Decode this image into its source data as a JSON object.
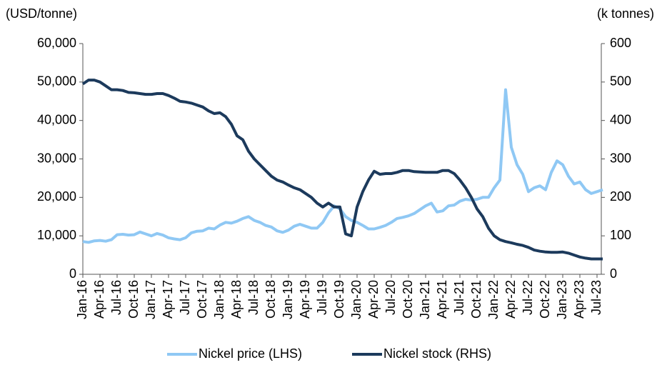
{
  "chart_data": {
    "type": "line",
    "y_label": "(USD/tonne)",
    "y2_label": "(k tonnes)",
    "categories": [
      "Jan-16",
      null,
      null,
      "Apr-16",
      null,
      null,
      "Jul-16",
      null,
      null,
      "Oct-16",
      null,
      null,
      "Jan-17",
      null,
      null,
      "Apr-17",
      null,
      null,
      "Jul-17",
      null,
      null,
      "Oct-17",
      null,
      null,
      "Jan-18",
      null,
      null,
      "Apr-18",
      null,
      null,
      "Jul-18",
      null,
      null,
      "Oct-18",
      null,
      null,
      "Jan-19",
      null,
      null,
      "Apr-19",
      null,
      null,
      "Jul-19",
      null,
      null,
      "Oct-19",
      null,
      null,
      "Jan-20",
      null,
      null,
      "Apr-20",
      null,
      null,
      "Jul-20",
      null,
      null,
      "Oct-20",
      null,
      null,
      "Jan-21",
      null,
      null,
      "Apr-21",
      null,
      null,
      "Jul-21",
      null,
      null,
      "Oct-21",
      null,
      null,
      "Jan-22",
      null,
      null,
      "Apr-22",
      null,
      null,
      "Jul-22",
      null,
      null,
      "Oct-22",
      null,
      null,
      "Jan-23",
      null,
      null,
      "Apr-23",
      null,
      null,
      "Jul-23",
      null
    ],
    "series": [
      {
        "name": "Nickel price (LHS)",
        "color": "#8fc8f4",
        "values": [
          8500,
          8300,
          8700,
          8800,
          8600,
          9000,
          10300,
          10400,
          10200,
          10300,
          11000,
          10500,
          10000,
          10600,
          10200,
          9500,
          9200,
          9000,
          9500,
          10800,
          11200,
          11300,
          12000,
          11800,
          12800,
          13500,
          13300,
          13800,
          14500,
          15000,
          14000,
          13500,
          12700,
          12300,
          11300,
          10900,
          11500,
          12500,
          13000,
          12500,
          12000,
          12000,
          13500,
          16000,
          17800,
          17000,
          15000,
          14000,
          13500,
          12700,
          11800,
          11800,
          12200,
          12700,
          13500,
          14500,
          14800,
          15200,
          15800,
          16800,
          17800,
          18500,
          16200,
          16500,
          17800,
          18000,
          19000,
          19500,
          19300,
          19500,
          20000,
          20000,
          22500,
          24500,
          48000,
          33000,
          28500,
          26000,
          21500,
          22500,
          23000,
          22000,
          26500,
          29500,
          28500,
          25500,
          23500,
          24000,
          22000,
          21000,
          21500,
          22000
        ]
      },
      {
        "name": "Nickel stock (RHS)",
        "color": "#1c3a5c",
        "axis": "y2",
        "values": [
          495,
          505,
          505,
          500,
          490,
          480,
          480,
          478,
          473,
          472,
          470,
          468,
          468,
          470,
          470,
          465,
          458,
          450,
          448,
          445,
          440,
          435,
          425,
          418,
          420,
          410,
          390,
          360,
          350,
          320,
          300,
          285,
          270,
          255,
          245,
          240,
          232,
          225,
          220,
          210,
          200,
          185,
          175,
          185,
          175,
          175,
          105,
          100,
          175,
          215,
          245,
          268,
          260,
          262,
          262,
          265,
          270,
          270,
          267,
          266,
          265,
          265,
          265,
          270,
          270,
          262,
          245,
          225,
          200,
          170,
          150,
          120,
          100,
          90,
          85,
          82,
          78,
          75,
          70,
          63,
          60,
          58,
          57,
          57,
          58,
          55,
          50,
          45,
          42,
          40,
          40,
          40
        ]
      }
    ],
    "ylim": [
      0,
      60000
    ],
    "yticks": [
      0,
      {
        "value": 10000,
        "label": "10,000"
      },
      {
        "value": 20000,
        "label": "20,000"
      },
      {
        "value": 30000,
        "label": "30,000"
      },
      {
        "value": 40000,
        "label": "40,000"
      },
      {
        "value": 50000,
        "label": "50,000"
      },
      {
        "value": 60000,
        "label": "60,000"
      }
    ],
    "y2lim": [
      0,
      600
    ],
    "y2ticks": [
      0,
      100,
      200,
      300,
      400,
      500,
      600
    ],
    "legend": "bottom"
  }
}
